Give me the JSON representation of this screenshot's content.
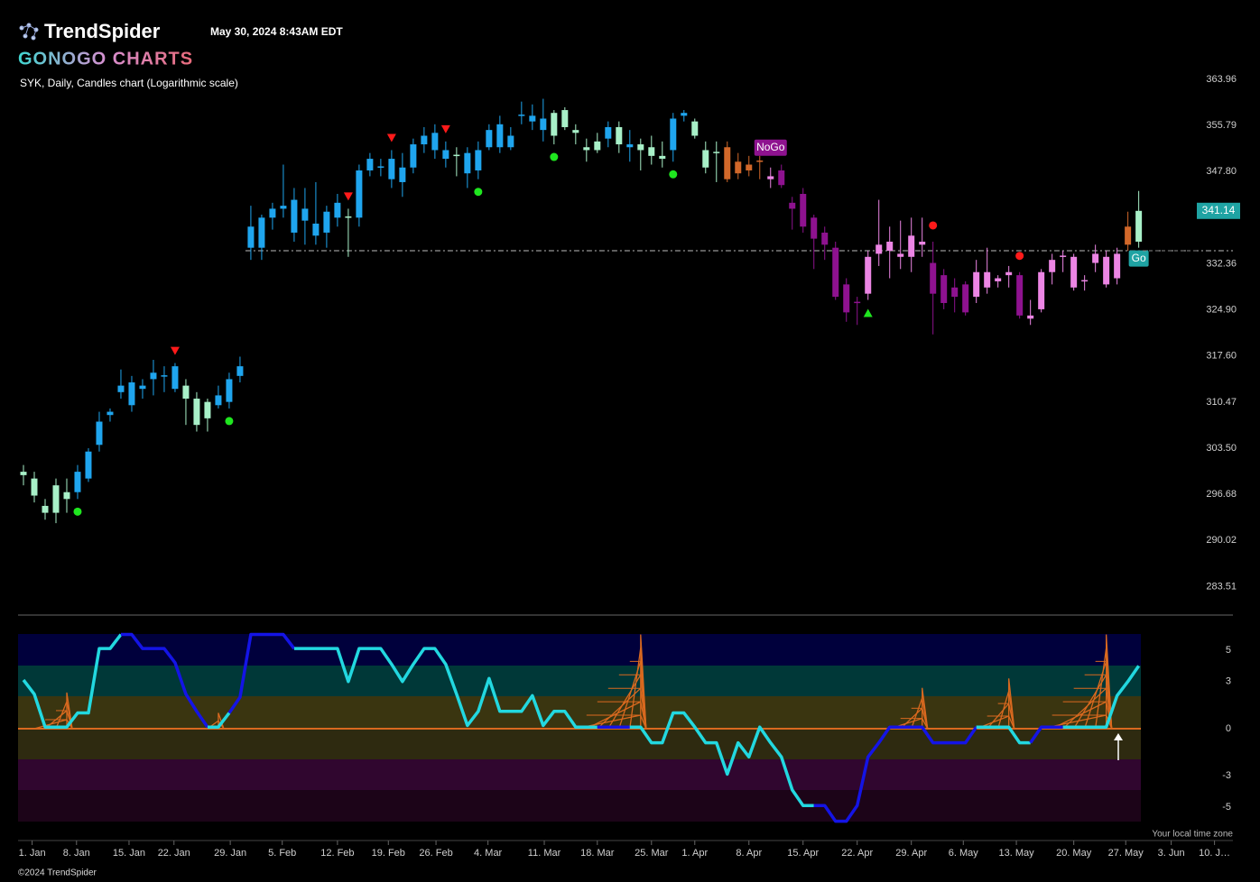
{
  "header": {
    "brand": "TrendSpider",
    "timestamp": "May 30, 2024 8:43AM EDT",
    "product": "GONOGO CHARTS",
    "chart_label": "SYK, Daily, Candles chart (Logarithmic scale)",
    "timezone_note": "Your local time zone",
    "copyright": "©2024 TrendSpider"
  },
  "chart_data": [
    {
      "type": "candlestick",
      "log_scale": true,
      "ylim": [
        281.05,
        365.26
      ],
      "yticks": [
        363.96,
        {
          "value": 355.79,
          "label": "355.79"
        },
        {
          "value": 347.8,
          "label": "347.80"
        },
        332.36,
        {
          "value": 324.9,
          "label": "324.90"
        },
        {
          "value": 317.6,
          "label": "317.60"
        },
        310.47,
        {
          "value": 303.5,
          "label": "303.50"
        },
        296.68,
        290.02,
        283.51
      ],
      "xlim": [
        -0.5,
        111.7
      ],
      "xticks": [
        {
          "value": 0.8,
          "label": "1. Jan"
        },
        {
          "value": 4.9,
          "label": "8. Jan"
        },
        {
          "value": 9.75,
          "label": "15. Jan"
        },
        {
          "value": 13.9,
          "label": "22. Jan"
        },
        {
          "value": 19.1,
          "label": "29. Jan"
        },
        {
          "value": 23.9,
          "label": "5. Feb"
        },
        {
          "value": 29,
          "label": "12. Feb"
        },
        {
          "value": 33.7,
          "label": "19. Feb"
        },
        {
          "value": 38.1,
          "label": "26. Feb"
        },
        {
          "value": 42.9,
          "label": "4. Mar"
        },
        {
          "value": 48.1,
          "label": "11. Mar"
        },
        {
          "value": 53,
          "label": "18. Mar"
        },
        {
          "value": 58,
          "label": "25. Mar"
        },
        {
          "value": 62,
          "label": "1. Apr"
        },
        {
          "value": 67,
          "label": "8. Apr"
        },
        {
          "value": 72,
          "label": "15. Apr"
        },
        {
          "value": 77,
          "label": "22. Apr"
        },
        {
          "value": 82,
          "label": "29. Apr"
        },
        {
          "value": 86.8,
          "label": "6. May"
        },
        {
          "value": 91.7,
          "label": "13. May"
        },
        {
          "value": 97,
          "label": "20. May"
        },
        {
          "value": 101.8,
          "label": "27. May"
        },
        {
          "value": 106,
          "label": "3. Jun"
        },
        {
          "value": 110,
          "label": "10. J…"
        }
      ],
      "last_price": 341.14,
      "last_price_color": "#1fa3a3",
      "reference_line": 334.5,
      "reference_start": 20.5,
      "candles": [
        {
          "o": 300,
          "h": 301,
          "l": 298,
          "c": 299.5,
          "color": "#a8f0c8"
        },
        {
          "o": 299,
          "h": 300,
          "l": 295.5,
          "c": 296.5,
          "color": "#a8f0c8"
        },
        {
          "o": 295,
          "h": 296,
          "l": 293,
          "c": 294,
          "color": "#a8f0c8"
        },
        {
          "o": 294,
          "h": 299,
          "l": 292.5,
          "c": 298,
          "color": "#a8f0c8"
        },
        {
          "o": 297,
          "h": 299,
          "l": 294,
          "c": 296,
          "color": "#a8f0c8"
        },
        {
          "o": 297,
          "h": 301,
          "l": 296,
          "c": 300,
          "color": "#1fa5ee"
        },
        {
          "o": 299,
          "h": 303.5,
          "l": 298.5,
          "c": 303,
          "color": "#1fa5ee"
        },
        {
          "o": 304,
          "h": 309,
          "l": 303,
          "c": 307.5,
          "color": "#1fa5ee"
        },
        {
          "o": 308.5,
          "h": 309.5,
          "l": 307.5,
          "c": 309,
          "color": "#1fa5ee"
        },
        {
          "o": 312,
          "h": 315.5,
          "l": 311,
          "c": 313,
          "color": "#1fa5ee"
        },
        {
          "o": 310,
          "h": 314.5,
          "l": 309,
          "c": 313.5,
          "color": "#1fa5ee"
        },
        {
          "o": 312.5,
          "h": 314,
          "l": 311,
          "c": 313,
          "color": "#1fa5ee"
        },
        {
          "o": 314,
          "h": 317,
          "l": 311.5,
          "c": 315,
          "color": "#1fa5ee"
        },
        {
          "o": 314.5,
          "h": 316,
          "l": 312,
          "c": 314.6,
          "color": "#1fa5ee"
        },
        {
          "o": 316,
          "h": 316.5,
          "l": 312,
          "c": 312.5,
          "color": "#1fa5ee"
        },
        {
          "o": 313,
          "h": 314,
          "l": 307,
          "c": 311,
          "color": "#a8f0c8"
        },
        {
          "o": 311,
          "h": 312,
          "l": 306,
          "c": 307,
          "color": "#a8f0c8"
        },
        {
          "o": 310.5,
          "h": 311,
          "l": 306,
          "c": 308,
          "color": "#a8f0c8"
        },
        {
          "o": 310,
          "h": 313,
          "l": 309.5,
          "c": 311.5,
          "color": "#1fa5ee"
        },
        {
          "o": 310.5,
          "h": 315,
          "l": 309.5,
          "c": 314,
          "color": "#1fa5ee"
        },
        {
          "o": 314.5,
          "h": 317.5,
          "l": 313.5,
          "c": 316,
          "color": "#1fa5ee"
        },
        {
          "o": 335,
          "h": 342,
          "l": 333,
          "c": 338.5,
          "color": "#1fa5ee"
        },
        {
          "o": 335,
          "h": 340.5,
          "l": 333,
          "c": 340,
          "color": "#1fa5ee"
        },
        {
          "o": 340,
          "h": 342.5,
          "l": 338,
          "c": 341.5,
          "color": "#1fa5ee"
        },
        {
          "o": 341.5,
          "h": 349,
          "l": 340,
          "c": 342,
          "color": "#1fa5ee"
        },
        {
          "o": 337.5,
          "h": 345,
          "l": 336,
          "c": 343,
          "color": "#1fa5ee"
        },
        {
          "o": 339.5,
          "h": 345,
          "l": 335.5,
          "c": 341.5,
          "color": "#1fa5ee"
        },
        {
          "o": 339,
          "h": 346,
          "l": 335.5,
          "c": 337,
          "color": "#1fa5ee"
        },
        {
          "o": 337.5,
          "h": 342,
          "l": 335,
          "c": 341,
          "color": "#1fa5ee"
        },
        {
          "o": 340,
          "h": 344,
          "l": 338.5,
          "c": 342.5,
          "color": "#1fa5ee"
        },
        {
          "o": 340,
          "h": 341.5,
          "l": 333.5,
          "c": 340.2,
          "color": "#a8f0c8"
        },
        {
          "o": 340,
          "h": 349,
          "l": 338.5,
          "c": 348,
          "color": "#1fa5ee"
        },
        {
          "o": 348,
          "h": 351,
          "l": 347,
          "c": 350,
          "color": "#1fa5ee"
        },
        {
          "o": 348.5,
          "h": 350,
          "l": 347,
          "c": 348.7,
          "color": "#1fa5ee"
        },
        {
          "o": 346.5,
          "h": 351.5,
          "l": 345,
          "c": 350,
          "color": "#1fa5ee"
        },
        {
          "o": 348.5,
          "h": 351,
          "l": 343.5,
          "c": 346,
          "color": "#1fa5ee"
        },
        {
          "o": 348.5,
          "h": 353.5,
          "l": 347.5,
          "c": 352.5,
          "color": "#1fa5ee"
        },
        {
          "o": 352.5,
          "h": 355.5,
          "l": 351,
          "c": 354,
          "color": "#1fa5ee"
        },
        {
          "o": 354.5,
          "h": 356,
          "l": 350,
          "c": 351.5,
          "color": "#1fa5ee"
        },
        {
          "o": 351.5,
          "h": 353,
          "l": 348.5,
          "c": 350,
          "color": "#1fa5ee"
        },
        {
          "o": 350.5,
          "h": 352,
          "l": 347,
          "c": 350.7,
          "color": "#a8f0c8"
        },
        {
          "o": 351,
          "h": 352,
          "l": 345,
          "c": 347.5,
          "color": "#1fa5ee"
        },
        {
          "o": 348,
          "h": 353,
          "l": 346.5,
          "c": 351.5,
          "color": "#1fa5ee"
        },
        {
          "o": 352,
          "h": 356,
          "l": 351.5,
          "c": 355,
          "color": "#1fa5ee"
        },
        {
          "o": 352,
          "h": 357.5,
          "l": 351,
          "c": 356,
          "color": "#1fa5ee"
        },
        {
          "o": 352,
          "h": 355.5,
          "l": 351.5,
          "c": 354,
          "color": "#1fa5ee"
        },
        {
          "o": 357.5,
          "h": 360,
          "l": 356,
          "c": 357.7,
          "color": "#1fa5ee"
        },
        {
          "o": 356.5,
          "h": 359.5,
          "l": 355,
          "c": 357.5,
          "color": "#1fa5ee"
        },
        {
          "o": 357,
          "h": 360.5,
          "l": 353,
          "c": 355,
          "color": "#1fa5ee"
        },
        {
          "o": 354,
          "h": 358.5,
          "l": 352.5,
          "c": 358,
          "color": "#a8f0c8"
        },
        {
          "o": 355.5,
          "h": 359,
          "l": 355,
          "c": 358.5,
          "color": "#a8f0c8"
        },
        {
          "o": 355,
          "h": 356,
          "l": 352.5,
          "c": 354.5,
          "color": "#a8f0c8"
        },
        {
          "o": 352,
          "h": 353.5,
          "l": 349.5,
          "c": 351.5,
          "color": "#a8f0c8"
        },
        {
          "o": 351.5,
          "h": 354.5,
          "l": 351,
          "c": 353,
          "color": "#a8f0c8"
        },
        {
          "o": 353.5,
          "h": 356.5,
          "l": 352,
          "c": 355.5,
          "color": "#1fa5ee"
        },
        {
          "o": 355.5,
          "h": 356.5,
          "l": 351,
          "c": 352.5,
          "color": "#a8f0c8"
        },
        {
          "o": 352.5,
          "h": 355,
          "l": 349.5,
          "c": 352,
          "color": "#1fa5ee"
        },
        {
          "o": 352.5,
          "h": 353.5,
          "l": 348,
          "c": 351.5,
          "color": "#a8f0c8"
        },
        {
          "o": 352,
          "h": 354,
          "l": 349,
          "c": 350.5,
          "color": "#a8f0c8"
        },
        {
          "o": 350.5,
          "h": 353,
          "l": 348.5,
          "c": 350,
          "color": "#a8f0c8"
        },
        {
          "o": 351.5,
          "h": 358,
          "l": 349.5,
          "c": 357,
          "color": "#1fa5ee"
        },
        {
          "o": 357.5,
          "h": 358.5,
          "l": 356.5,
          "c": 358,
          "color": "#1fa5ee"
        },
        {
          "o": 356.5,
          "h": 357,
          "l": 353.5,
          "c": 354,
          "color": "#a8f0c8"
        },
        {
          "o": 351.5,
          "h": 353,
          "l": 347.5,
          "c": 348.5,
          "color": "#a8f0c8"
        },
        {
          "o": 351,
          "h": 353,
          "l": 346,
          "c": 351.2,
          "color": "#a8f0c8"
        },
        {
          "o": 352,
          "h": 353,
          "l": 346,
          "c": 346.5,
          "color": "#d2682a"
        },
        {
          "o": 349.5,
          "h": 351,
          "l": 346.5,
          "c": 347.5,
          "color": "#d2682a"
        },
        {
          "o": 349,
          "h": 350.5,
          "l": 347,
          "c": 348,
          "color": "#d2682a"
        },
        {
          "o": 349.5,
          "h": 350.5,
          "l": 346.5,
          "c": 349.7,
          "color": "#d2682a"
        },
        {
          "o": 347,
          "h": 348.5,
          "l": 345,
          "c": 346.5,
          "color": "#ec85e4"
        },
        {
          "o": 348,
          "h": 349,
          "l": 345,
          "c": 345.5,
          "color": "#8e128f"
        },
        {
          "o": 342.5,
          "h": 343.5,
          "l": 338,
          "c": 341.5,
          "color": "#8e128f"
        },
        {
          "o": 344,
          "h": 345,
          "l": 337.5,
          "c": 338.5,
          "color": "#8e128f"
        },
        {
          "o": 340,
          "h": 340.5,
          "l": 331.5,
          "c": 336.5,
          "color": "#8e128f"
        },
        {
          "o": 337.5,
          "h": 338.5,
          "l": 333,
          "c": 335.5,
          "color": "#8e128f"
        },
        {
          "o": 335,
          "h": 336,
          "l": 326.5,
          "c": 327,
          "color": "#8e128f"
        },
        {
          "o": 329,
          "h": 330,
          "l": 323,
          "c": 324.5,
          "color": "#8e128f"
        },
        {
          "o": 326,
          "h": 327,
          "l": 322.5,
          "c": 326.2,
          "color": "#8e128f"
        },
        {
          "o": 327.5,
          "h": 334.5,
          "l": 326.5,
          "c": 333.5,
          "color": "#ec85e4"
        },
        {
          "o": 335.5,
          "h": 343,
          "l": 332,
          "c": 334,
          "color": "#ec85e4"
        },
        {
          "o": 336,
          "h": 338.5,
          "l": 330,
          "c": 334.5,
          "color": "#ec85e4"
        },
        {
          "o": 334,
          "h": 339.5,
          "l": 331.5,
          "c": 333.5,
          "color": "#ec85e4"
        },
        {
          "o": 333.5,
          "h": 340,
          "l": 331,
          "c": 337,
          "color": "#ec85e4"
        },
        {
          "o": 336,
          "h": 340,
          "l": 333.5,
          "c": 335.5,
          "color": "#ec85e4"
        },
        {
          "o": 332.5,
          "h": 336,
          "l": 321,
          "c": 327.5,
          "color": "#8e128f"
        },
        {
          "o": 330.5,
          "h": 331.5,
          "l": 325,
          "c": 326,
          "color": "#8e128f"
        },
        {
          "o": 328.5,
          "h": 330,
          "l": 324.5,
          "c": 327,
          "color": "#8e128f"
        },
        {
          "o": 329,
          "h": 329.5,
          "l": 324,
          "c": 324.5,
          "color": "#8e128f"
        },
        {
          "o": 331,
          "h": 333,
          "l": 326,
          "c": 327,
          "color": "#ec85e4"
        },
        {
          "o": 331,
          "h": 335,
          "l": 327.5,
          "c": 328.5,
          "color": "#ec85e4"
        },
        {
          "o": 330,
          "h": 330.5,
          "l": 328.5,
          "c": 329.5,
          "color": "#ec85e4"
        },
        {
          "o": 331,
          "h": 332,
          "l": 328.5,
          "c": 330.5,
          "color": "#ec85e4"
        },
        {
          "o": 330.5,
          "h": 331,
          "l": 323.5,
          "c": 324,
          "color": "#8e128f"
        },
        {
          "o": 324,
          "h": 326.5,
          "l": 322.5,
          "c": 323.5,
          "color": "#ec85e4"
        },
        {
          "o": 325,
          "h": 331.5,
          "l": 324.5,
          "c": 331,
          "color": "#ec85e4"
        },
        {
          "o": 331,
          "h": 334,
          "l": 329,
          "c": 333,
          "color": "#ec85e4"
        },
        {
          "o": 333.5,
          "h": 334.5,
          "l": 331,
          "c": 333.7,
          "color": "#ec85e4"
        },
        {
          "o": 333.5,
          "h": 334,
          "l": 328,
          "c": 328.5,
          "color": "#ec85e4"
        },
        {
          "o": 329.5,
          "h": 330.5,
          "l": 328,
          "c": 329.7,
          "color": "#ec85e4"
        },
        {
          "o": 334,
          "h": 335.5,
          "l": 331,
          "c": 332.5,
          "color": "#ec85e4"
        },
        {
          "o": 333.5,
          "h": 334.5,
          "l": 328.5,
          "c": 329,
          "color": "#ec85e4"
        },
        {
          "o": 334,
          "h": 335,
          "l": 329,
          "c": 330,
          "color": "#ec85e4"
        },
        {
          "o": 335.5,
          "h": 341,
          "l": 334.5,
          "c": 338.5,
          "color": "#d2682a"
        },
        {
          "o": 336,
          "h": 344.5,
          "l": 335,
          "c": 341.14,
          "color": "#a8f0c8"
        }
      ],
      "signals": {
        "sell_triangles": [
          14,
          30,
          34,
          39
        ],
        "buy_dots": [
          5,
          19,
          42,
          49,
          60
        ],
        "buy_triangles": [
          78
        ],
        "sell_dots": [
          84,
          92
        ]
      },
      "labels": [
        {
          "text": "NoGo",
          "index": 69,
          "color": "#8e128f"
        },
        {
          "text": "Go",
          "index": 103,
          "color": "#1fa3a3"
        }
      ]
    },
    {
      "type": "oscillator",
      "ylim": [
        -5.92,
        6.03
      ],
      "yticks": [
        5,
        3,
        0,
        -3,
        -5
      ],
      "line_color": "#22d8e0",
      "strong_color": "#1414e6",
      "squeeze_color": "#d9691f",
      "strong_ranges": [
        [
          9,
          17
        ],
        [
          19,
          25
        ],
        [
          53,
          56
        ],
        [
          73,
          88
        ],
        [
          93,
          96
        ]
      ],
      "values": [
        3.1,
        2.2,
        0.1,
        0.1,
        0.1,
        1.0,
        1.0,
        5.1,
        5.1,
        6.0,
        6.0,
        5.1,
        5.1,
        5.1,
        4.2,
        2.2,
        1.1,
        0.1,
        0.1,
        1.0,
        2.0,
        6.0,
        6.0,
        6.0,
        6.0,
        5.1,
        5.1,
        5.1,
        5.1,
        5.1,
        3.0,
        5.1,
        5.1,
        5.1,
        4.1,
        3.0,
        4.1,
        5.1,
        5.1,
        4.1,
        2.2,
        0.2,
        1.1,
        3.2,
        1.1,
        1.1,
        1.1,
        2.1,
        0.2,
        1.1,
        1.1,
        0.1,
        0.1,
        0.1,
        0.1,
        0.1,
        0.1,
        0.1,
        -0.9,
        -0.9,
        1.0,
        1.0,
        0.1,
        -0.9,
        -0.9,
        -2.9,
        -0.9,
        -1.8,
        0.1,
        -0.9,
        -1.8,
        -3.9,
        -4.9,
        -4.9,
        -4.9,
        -5.9,
        -5.9,
        -4.9,
        -1.8,
        -0.9,
        0.1,
        0.1,
        0.1,
        0.1,
        -0.9,
        -0.9,
        -0.9,
        -0.9,
        0.1,
        0.1,
        0.1,
        0.1,
        -0.9,
        -0.9,
        0.1,
        0.1,
        0.1,
        0.1,
        0.1,
        0.1,
        0.1,
        2.1,
        3.0,
        4.0
      ],
      "squeezes": [
        {
          "start": 1,
          "peak_index": 4,
          "peak": 2.3
        },
        {
          "start": 17,
          "peak_index": 18,
          "peak": 1.0
        },
        {
          "start": 51,
          "peak_index": 57,
          "peak": 6.0
        },
        {
          "start": 80,
          "peak_index": 83,
          "peak": 2.6
        },
        {
          "start": 88,
          "peak_index": 91,
          "peak": 3.2
        },
        {
          "start": 94,
          "peak_index": 100,
          "peak": 6.0
        }
      ]
    }
  ]
}
